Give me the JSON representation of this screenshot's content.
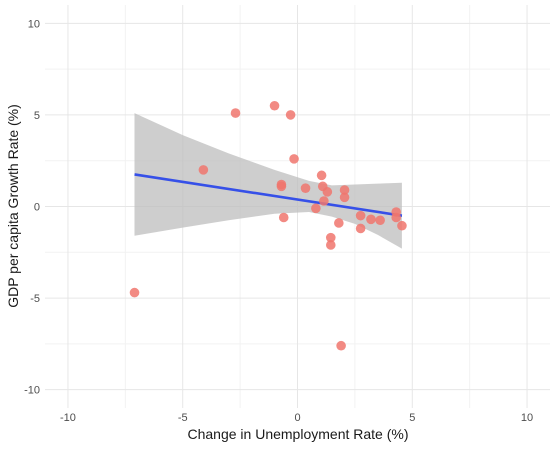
{
  "chart_data": {
    "type": "scatter",
    "title": "",
    "xlabel": "Change in Unemployment Rate (%)",
    "ylabel": "GDP per capita Growth Rate (%)",
    "xlim": [
      -11,
      11
    ],
    "ylim": [
      -11,
      11
    ],
    "x_ticks": [
      -10,
      -5,
      0,
      5,
      10
    ],
    "y_ticks": [
      -10,
      -5,
      0,
      5,
      10
    ],
    "grid": true,
    "point_color": "#F0766D",
    "fit_line_color": "#3650E8",
    "ribbon_color": "#BEBEBE",
    "points": [
      {
        "x": -7.1,
        "y": -4.7
      },
      {
        "x": -4.1,
        "y": 2.0
      },
      {
        "x": -2.7,
        "y": 5.1
      },
      {
        "x": -1.0,
        "y": 5.5
      },
      {
        "x": -0.7,
        "y": 1.2
      },
      {
        "x": -0.7,
        "y": 1.1
      },
      {
        "x": -0.6,
        "y": -0.6
      },
      {
        "x": -0.3,
        "y": 5.0
      },
      {
        "x": -0.15,
        "y": 2.6
      },
      {
        "x": 0.35,
        "y": 1.0
      },
      {
        "x": 0.8,
        "y": -0.1
      },
      {
        "x": 1.05,
        "y": 1.7
      },
      {
        "x": 1.1,
        "y": 1.1
      },
      {
        "x": 1.15,
        "y": 0.3
      },
      {
        "x": 1.3,
        "y": 0.8
      },
      {
        "x": 1.45,
        "y": -1.7
      },
      {
        "x": 1.45,
        "y": -2.1
      },
      {
        "x": 1.8,
        "y": -0.9
      },
      {
        "x": 1.9,
        "y": -7.6
      },
      {
        "x": 2.05,
        "y": 0.9
      },
      {
        "x": 2.05,
        "y": 0.5
      },
      {
        "x": 2.75,
        "y": -0.5
      },
      {
        "x": 2.75,
        "y": -1.2
      },
      {
        "x": 3.2,
        "y": -0.7
      },
      {
        "x": 3.6,
        "y": -0.75
      },
      {
        "x": 4.3,
        "y": -0.3
      },
      {
        "x": 4.3,
        "y": -0.6
      },
      {
        "x": 4.55,
        "y": -1.05
      }
    ],
    "fit_line": {
      "x": [
        -7.1,
        4.55
      ],
      "y": [
        1.75,
        -0.5
      ]
    },
    "confidence_band": {
      "x": [
        -7.1,
        -5.0,
        -3.0,
        -1.0,
        0.5,
        1.5,
        2.5,
        3.5,
        4.55
      ],
      "upper": [
        5.1,
        3.9,
        2.9,
        2.0,
        1.4,
        1.15,
        1.2,
        1.25,
        1.3
      ],
      "lower": [
        -1.6,
        -1.15,
        -0.75,
        -0.4,
        -0.3,
        -0.55,
        -0.95,
        -1.55,
        -2.3
      ]
    }
  }
}
